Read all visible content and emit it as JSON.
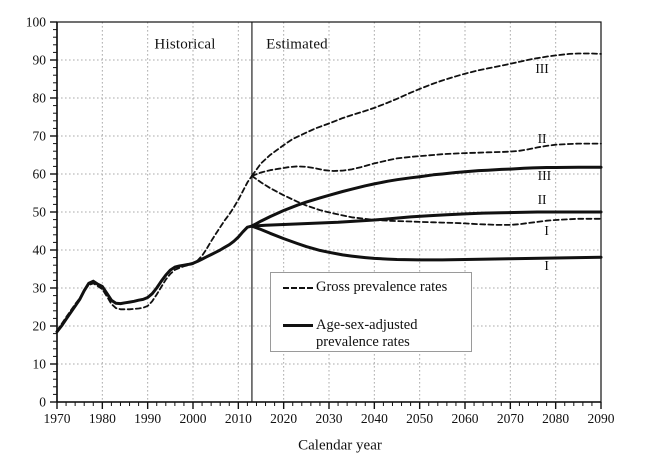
{
  "labels": {
    "historical": "Historical",
    "estimated": "Estimated",
    "x_axis_title": "Calendar year"
  },
  "legend": {
    "items": [
      {
        "style": "dashed",
        "label": "Gross prevalence rates"
      },
      {
        "style": "solid",
        "label_line1": "Age-sex-adjusted",
        "label_line2": "prevalence rates"
      }
    ]
  },
  "chart_data": {
    "type": "line",
    "title": "",
    "xlabel": "Calendar year",
    "ylabel": "",
    "x_range": [
      1970,
      2090
    ],
    "y_range": [
      0,
      100
    ],
    "x_ticks": [
      1970,
      1980,
      1990,
      2000,
      2010,
      2020,
      2030,
      2040,
      2050,
      2060,
      2070,
      2080,
      2090
    ],
    "y_ticks": [
      0,
      10,
      20,
      30,
      40,
      50,
      60,
      70,
      80,
      90,
      100
    ],
    "minor_step_x": 2,
    "minor_step_y": 2,
    "grid": true,
    "grid_color": "#ababab",
    "line_color": "#111111",
    "divider_year": 2013,
    "legend_position": "lower-center-inside",
    "series": [
      {
        "name": "gross-historical",
        "group": "gross",
        "dash": true,
        "points": [
          [
            1970,
            18.8
          ],
          [
            1971,
            20.5
          ],
          [
            1972,
            22.3
          ],
          [
            1973,
            24.0
          ],
          [
            1974,
            25.7
          ],
          [
            1975,
            27.3
          ],
          [
            1976,
            29.3
          ],
          [
            1977,
            30.8
          ],
          [
            1978,
            31.2
          ],
          [
            1979,
            30.5
          ],
          [
            1980,
            29.7
          ],
          [
            1981,
            27.8
          ],
          [
            1982,
            25.8
          ],
          [
            1983,
            24.7
          ],
          [
            1984,
            24.4
          ],
          [
            1985,
            24.4
          ],
          [
            1986,
            24.4
          ],
          [
            1987,
            24.5
          ],
          [
            1988,
            24.6
          ],
          [
            1989,
            24.8
          ],
          [
            1990,
            25.3
          ],
          [
            1991,
            26.5
          ],
          [
            1992,
            28.3
          ],
          [
            1993,
            30.3
          ],
          [
            1994,
            32.2
          ],
          [
            1995,
            33.7
          ],
          [
            1996,
            34.8
          ],
          [
            1997,
            35.3
          ],
          [
            1998,
            35.7
          ],
          [
            1999,
            36.0
          ],
          [
            2000,
            36.3
          ],
          [
            2001,
            37.2
          ],
          [
            2002,
            38.5
          ],
          [
            2003,
            40.3
          ],
          [
            2004,
            42.3
          ],
          [
            2005,
            44.2
          ],
          [
            2006,
            46.0
          ],
          [
            2007,
            47.8
          ],
          [
            2008,
            49.4
          ],
          [
            2009,
            51.2
          ],
          [
            2010,
            53.2
          ],
          [
            2011,
            55.5
          ],
          [
            2012,
            57.8
          ],
          [
            2013,
            59.5
          ]
        ]
      },
      {
        "name": "adjusted-historical",
        "group": "adjusted",
        "dash": false,
        "points": [
          [
            1970,
            18.5
          ],
          [
            1971,
            20.0
          ],
          [
            1972,
            21.8
          ],
          [
            1973,
            23.5
          ],
          [
            1974,
            25.2
          ],
          [
            1975,
            27.0
          ],
          [
            1976,
            29.3
          ],
          [
            1977,
            31.2
          ],
          [
            1978,
            31.8
          ],
          [
            1979,
            31.0
          ],
          [
            1980,
            30.4
          ],
          [
            1981,
            28.6
          ],
          [
            1982,
            26.8
          ],
          [
            1983,
            26.0
          ],
          [
            1984,
            25.9
          ],
          [
            1985,
            26.1
          ],
          [
            1986,
            26.3
          ],
          [
            1987,
            26.5
          ],
          [
            1988,
            26.8
          ],
          [
            1989,
            27.0
          ],
          [
            1990,
            27.5
          ],
          [
            1991,
            28.5
          ],
          [
            1992,
            30.0
          ],
          [
            1993,
            31.8
          ],
          [
            1994,
            33.4
          ],
          [
            1995,
            34.7
          ],
          [
            1996,
            35.5
          ],
          [
            1997,
            35.8
          ],
          [
            1998,
            36.0
          ],
          [
            1999,
            36.2
          ],
          [
            2000,
            36.5
          ],
          [
            2001,
            37.0
          ],
          [
            2002,
            37.6
          ],
          [
            2003,
            38.2
          ],
          [
            2004,
            38.8
          ],
          [
            2005,
            39.4
          ],
          [
            2006,
            40.0
          ],
          [
            2007,
            40.7
          ],
          [
            2008,
            41.4
          ],
          [
            2009,
            42.3
          ],
          [
            2010,
            43.4
          ],
          [
            2011,
            44.8
          ],
          [
            2012,
            46.0
          ],
          [
            2013,
            46.3
          ]
        ]
      },
      {
        "name": "gross-III",
        "group": "gross",
        "scenario": "III",
        "dash": true,
        "points": [
          [
            2013,
            59.5
          ],
          [
            2015,
            62.8
          ],
          [
            2017,
            65.0
          ],
          [
            2020,
            67.6
          ],
          [
            2022,
            69.2
          ],
          [
            2025,
            70.9
          ],
          [
            2027,
            72.0
          ],
          [
            2030,
            73.3
          ],
          [
            2033,
            74.7
          ],
          [
            2035,
            75.5
          ],
          [
            2038,
            76.6
          ],
          [
            2040,
            77.4
          ],
          [
            2043,
            78.8
          ],
          [
            2045,
            79.8
          ],
          [
            2048,
            81.4
          ],
          [
            2050,
            82.4
          ],
          [
            2053,
            83.8
          ],
          [
            2055,
            84.6
          ],
          [
            2058,
            85.7
          ],
          [
            2060,
            86.4
          ],
          [
            2063,
            87.3
          ],
          [
            2065,
            87.8
          ],
          [
            2068,
            88.5
          ],
          [
            2070,
            89.0
          ],
          [
            2073,
            89.8
          ],
          [
            2075,
            90.3
          ],
          [
            2078,
            90.9
          ],
          [
            2080,
            91.2
          ],
          [
            2083,
            91.6
          ],
          [
            2085,
            91.7
          ],
          [
            2088,
            91.7
          ],
          [
            2090,
            91.6
          ]
        ]
      },
      {
        "name": "gross-II",
        "group": "gross",
        "scenario": "II",
        "dash": true,
        "points": [
          [
            2013,
            59.5
          ],
          [
            2015,
            60.4
          ],
          [
            2017,
            61.0
          ],
          [
            2019,
            61.4
          ],
          [
            2021,
            61.8
          ],
          [
            2023,
            62.0
          ],
          [
            2025,
            61.9
          ],
          [
            2027,
            61.5
          ],
          [
            2029,
            61.0
          ],
          [
            2031,
            60.8
          ],
          [
            2033,
            60.9
          ],
          [
            2035,
            61.2
          ],
          [
            2037,
            61.8
          ],
          [
            2040,
            62.8
          ],
          [
            2043,
            63.6
          ],
          [
            2045,
            64.1
          ],
          [
            2048,
            64.5
          ],
          [
            2050,
            64.7
          ],
          [
            2053,
            65.0
          ],
          [
            2055,
            65.2
          ],
          [
            2058,
            65.4
          ],
          [
            2060,
            65.5
          ],
          [
            2063,
            65.6
          ],
          [
            2065,
            65.7
          ],
          [
            2068,
            65.8
          ],
          [
            2070,
            65.9
          ],
          [
            2072,
            66.1
          ],
          [
            2074,
            66.5
          ],
          [
            2076,
            67.0
          ],
          [
            2078,
            67.4
          ],
          [
            2080,
            67.7
          ],
          [
            2083,
            67.9
          ],
          [
            2085,
            68.0
          ],
          [
            2090,
            68.0
          ]
        ]
      },
      {
        "name": "gross-I",
        "group": "gross",
        "scenario": "I",
        "dash": true,
        "points": [
          [
            2013,
            59.5
          ],
          [
            2015,
            57.8
          ],
          [
            2017,
            56.3
          ],
          [
            2020,
            54.4
          ],
          [
            2023,
            52.7
          ],
          [
            2025,
            51.7
          ],
          [
            2028,
            50.5
          ],
          [
            2030,
            49.9
          ],
          [
            2033,
            49.1
          ],
          [
            2035,
            48.6
          ],
          [
            2038,
            48.2
          ],
          [
            2040,
            47.9
          ],
          [
            2043,
            47.7
          ],
          [
            2045,
            47.6
          ],
          [
            2048,
            47.5
          ],
          [
            2050,
            47.4
          ],
          [
            2053,
            47.3
          ],
          [
            2055,
            47.2
          ],
          [
            2058,
            47.1
          ],
          [
            2060,
            47.0
          ],
          [
            2063,
            46.8
          ],
          [
            2065,
            46.7
          ],
          [
            2067,
            46.6
          ],
          [
            2070,
            46.6
          ],
          [
            2072,
            46.8
          ],
          [
            2074,
            47.1
          ],
          [
            2076,
            47.4
          ],
          [
            2078,
            47.7
          ],
          [
            2080,
            47.9
          ],
          [
            2083,
            48.1
          ],
          [
            2085,
            48.2
          ],
          [
            2090,
            48.2
          ]
        ]
      },
      {
        "name": "adjusted-III",
        "group": "adjusted",
        "scenario": "III",
        "dash": false,
        "points": [
          [
            2013,
            46.3
          ],
          [
            2015,
            47.6
          ],
          [
            2017,
            48.8
          ],
          [
            2020,
            50.4
          ],
          [
            2023,
            51.8
          ],
          [
            2025,
            52.6
          ],
          [
            2028,
            53.7
          ],
          [
            2030,
            54.4
          ],
          [
            2033,
            55.4
          ],
          [
            2035,
            56.0
          ],
          [
            2038,
            56.9
          ],
          [
            2040,
            57.4
          ],
          [
            2043,
            58.1
          ],
          [
            2045,
            58.5
          ],
          [
            2048,
            59.0
          ],
          [
            2050,
            59.3
          ],
          [
            2053,
            59.8
          ],
          [
            2055,
            60.0
          ],
          [
            2058,
            60.4
          ],
          [
            2060,
            60.6
          ],
          [
            2063,
            60.9
          ],
          [
            2065,
            61.0
          ],
          [
            2068,
            61.2
          ],
          [
            2070,
            61.3
          ],
          [
            2073,
            61.5
          ],
          [
            2075,
            61.6
          ],
          [
            2078,
            61.7
          ],
          [
            2080,
            61.7
          ],
          [
            2085,
            61.8
          ],
          [
            2090,
            61.8
          ]
        ]
      },
      {
        "name": "adjusted-II",
        "group": "adjusted",
        "scenario": "II",
        "dash": false,
        "points": [
          [
            2013,
            46.3
          ],
          [
            2016,
            46.5
          ],
          [
            2020,
            46.7
          ],
          [
            2024,
            46.9
          ],
          [
            2028,
            47.1
          ],
          [
            2032,
            47.3
          ],
          [
            2036,
            47.6
          ],
          [
            2040,
            47.9
          ],
          [
            2044,
            48.3
          ],
          [
            2048,
            48.7
          ],
          [
            2052,
            49.0
          ],
          [
            2056,
            49.3
          ],
          [
            2060,
            49.5
          ],
          [
            2064,
            49.7
          ],
          [
            2068,
            49.8
          ],
          [
            2072,
            49.9
          ],
          [
            2076,
            50.0
          ],
          [
            2080,
            50.0
          ],
          [
            2085,
            50.0
          ],
          [
            2090,
            50.0
          ]
        ]
      },
      {
        "name": "adjusted-I",
        "group": "adjusted",
        "scenario": "I",
        "dash": false,
        "points": [
          [
            2013,
            46.3
          ],
          [
            2015,
            45.4
          ],
          [
            2017,
            44.4
          ],
          [
            2020,
            43.0
          ],
          [
            2023,
            41.7
          ],
          [
            2025,
            40.9
          ],
          [
            2028,
            39.9
          ],
          [
            2030,
            39.4
          ],
          [
            2033,
            38.7
          ],
          [
            2035,
            38.4
          ],
          [
            2038,
            38.0
          ],
          [
            2040,
            37.8
          ],
          [
            2043,
            37.6
          ],
          [
            2045,
            37.5
          ],
          [
            2050,
            37.4
          ],
          [
            2055,
            37.4
          ],
          [
            2060,
            37.5
          ],
          [
            2065,
            37.6
          ],
          [
            2070,
            37.7
          ],
          [
            2075,
            37.8
          ],
          [
            2080,
            37.9
          ],
          [
            2085,
            38.0
          ],
          [
            2090,
            38.1
          ]
        ]
      }
    ],
    "curve_labels": [
      {
        "text": "III",
        "series": "gross-III",
        "year": 2077,
        "value": 87.6
      },
      {
        "text": "II",
        "series": "gross-II",
        "year": 2077,
        "value": 69.2
      },
      {
        "text": "III",
        "series": "adjusted-III",
        "year": 2077.5,
        "value": 59.5
      },
      {
        "text": "II",
        "series": "adjusted-II",
        "year": 2077,
        "value": 53.2
      },
      {
        "text": "I",
        "series": "gross-I",
        "year": 2078,
        "value": 45.0
      },
      {
        "text": "I",
        "series": "adjusted-I",
        "year": 2078,
        "value": 35.8
      }
    ]
  }
}
